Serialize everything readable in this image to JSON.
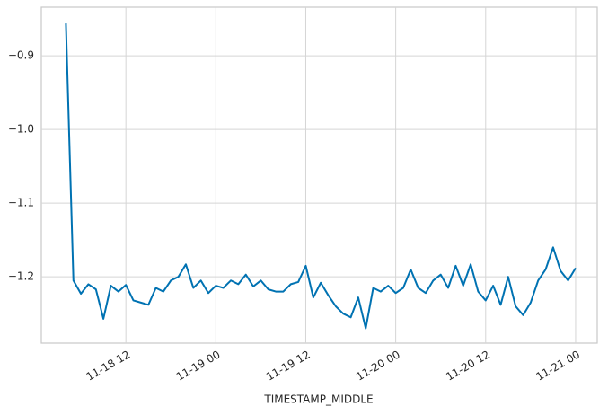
{
  "chart_data": {
    "type": "line",
    "xlabel": "TIMESTAMP_MIDDLE",
    "x": [
      "11-18 04:00",
      "11-18 05:00",
      "11-18 06:00",
      "11-18 07:00",
      "11-18 08:00",
      "11-18 09:00",
      "11-18 10:00",
      "11-18 11:00",
      "11-18 12:00",
      "11-18 13:00",
      "11-18 14:00",
      "11-18 15:00",
      "11-18 16:00",
      "11-18 17:00",
      "11-18 18:00",
      "11-18 19:00",
      "11-18 20:00",
      "11-18 21:00",
      "11-18 22:00",
      "11-18 23:00",
      "11-19 00:00",
      "11-19 01:00",
      "11-19 02:00",
      "11-19 03:00",
      "11-19 04:00",
      "11-19 05:00",
      "11-19 06:00",
      "11-19 07:00",
      "11-19 08:00",
      "11-19 09:00",
      "11-19 10:00",
      "11-19 11:00",
      "11-19 12:00",
      "11-19 13:00",
      "11-19 14:00",
      "11-19 15:00",
      "11-19 16:00",
      "11-19 17:00",
      "11-19 18:00",
      "11-19 19:00",
      "11-19 20:00",
      "11-19 21:00",
      "11-19 22:00",
      "11-19 23:00",
      "11-20 00:00",
      "11-20 01:00",
      "11-20 02:00",
      "11-20 03:00",
      "11-20 04:00",
      "11-20 05:00",
      "11-20 06:00",
      "11-20 07:00",
      "11-20 08:00",
      "11-20 09:00",
      "11-20 10:00",
      "11-20 11:00",
      "11-20 12:00",
      "11-20 13:00",
      "11-20 14:00",
      "11-20 15:00",
      "11-20 16:00",
      "11-20 17:00",
      "11-20 18:00",
      "11-20 19:00",
      "11-20 20:00",
      "11-20 21:00",
      "11-20 22:00",
      "11-20 23:00",
      "11-21 00:00"
    ],
    "series": [
      {
        "color": "#0072b2",
        "values": [
          -0.856,
          -1.205,
          -1.223,
          -1.21,
          -1.217,
          -1.257,
          -1.212,
          -1.22,
          -1.211,
          -1.232,
          -1.235,
          -1.238,
          -1.215,
          -1.22,
          -1.205,
          -1.2,
          -1.183,
          -1.215,
          -1.205,
          -1.222,
          -1.212,
          -1.215,
          -1.205,
          -1.21,
          -1.197,
          -1.213,
          -1.205,
          -1.217,
          -1.22,
          -1.22,
          -1.21,
          -1.207,
          -1.185,
          -1.228,
          -1.208,
          -1.225,
          -1.24,
          -1.25,
          -1.255,
          -1.228,
          -1.27,
          -1.215,
          -1.22,
          -1.212,
          -1.222,
          -1.215,
          -1.19,
          -1.215,
          -1.222,
          -1.205,
          -1.197,
          -1.215,
          -1.185,
          -1.212,
          -1.183,
          -1.22,
          -1.232,
          -1.212,
          -1.238,
          -1.2,
          -1.24,
          -1.252,
          -1.235,
          -1.205,
          -1.19,
          -1.16,
          -1.192,
          -1.205,
          -1.188
        ]
      }
    ],
    "xlim": [
      "11-18 00:43",
      "11-21 02:53"
    ],
    "xticks": [
      "11-18 12",
      "11-19 00",
      "11-19 12",
      "11-20 00",
      "11-20 12",
      "11-21 00"
    ],
    "ylim": [
      -1.29,
      -0.834
    ],
    "yticks": [
      {
        "value": -1.2,
        "label": "−1.2"
      },
      {
        "value": -1.1,
        "label": "−1.1"
      },
      {
        "value": -1.0,
        "label": "−1.0"
      },
      {
        "value": -0.9,
        "label": "−0.9"
      }
    ],
    "grid": true
  }
}
